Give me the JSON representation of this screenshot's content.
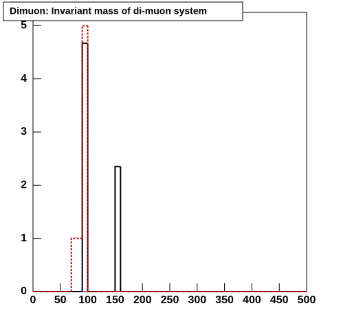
{
  "chart_data": {
    "type": "histogram",
    "title": "Dimuon: Invariant mass of di-muon system",
    "bins": [
      0,
      10,
      20,
      30,
      40,
      50,
      60,
      70,
      80,
      90,
      100,
      110,
      120,
      130,
      140,
      150,
      160,
      170,
      180,
      190,
      200,
      210,
      220,
      230,
      240,
      250,
      260,
      270,
      280,
      290,
      300,
      310,
      320,
      330,
      340,
      350,
      360,
      370,
      380,
      390,
      400,
      410,
      420,
      430,
      440,
      450,
      460,
      470,
      480,
      490,
      500
    ],
    "series": [
      {
        "color": "#000000",
        "dashed": false,
        "values": [
          0,
          0,
          0,
          0,
          0,
          0,
          0,
          0,
          0,
          4.67,
          0,
          0,
          0,
          0,
          0,
          2.35,
          0,
          0,
          0,
          0,
          0,
          0,
          0,
          0,
          0,
          0,
          0,
          0,
          0,
          0,
          0,
          0,
          0,
          0,
          0,
          0,
          0,
          0,
          0,
          0,
          0,
          0,
          0,
          0,
          0,
          0,
          0,
          0,
          0,
          0
        ]
      },
      {
        "color": "#cc0000",
        "dashed": true,
        "values": [
          0,
          0,
          0,
          0,
          0,
          0,
          0,
          1,
          1,
          5,
          0,
          0,
          0,
          0,
          0,
          0,
          0,
          0,
          0,
          0,
          0,
          0,
          0,
          0,
          0,
          0,
          0,
          0,
          0,
          0,
          0,
          0,
          0,
          0,
          0,
          0,
          0,
          0,
          0,
          0,
          0,
          0,
          0,
          0,
          0,
          0,
          0,
          0,
          0,
          0
        ]
      }
    ],
    "xlim": [
      0,
      500
    ],
    "xticks": [
      0,
      50,
      100,
      150,
      200,
      250,
      300,
      350,
      400,
      450,
      500
    ],
    "ylim": [
      0,
      5.25
    ],
    "yticks": [
      0,
      1,
      2,
      3,
      4,
      5
    ]
  }
}
